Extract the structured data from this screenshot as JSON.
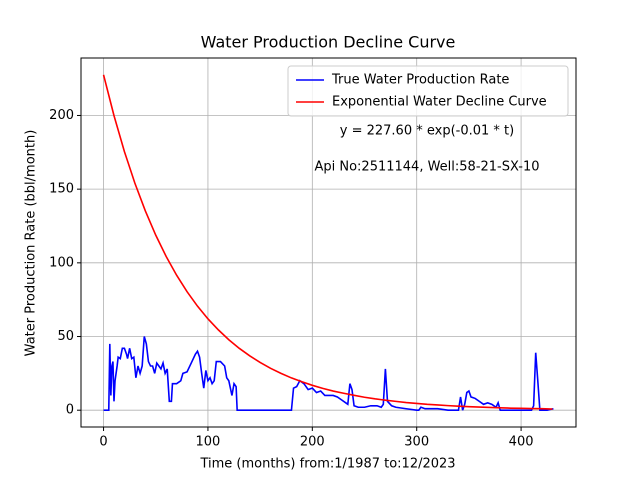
{
  "chart_data": {
    "type": "line",
    "title": "Water Production Decline Curve",
    "x_label": "Time (months) from:1/1987 to:12/2023",
    "y_label": "Water Production Rate (bbl/month)",
    "annotations": [
      "y = 227.60 * exp(-0.01 * t)",
      "Api No:2511144, Well:58-21-SX-10"
    ],
    "xlim": [
      -21.6,
      452.6
    ],
    "ylim": [
      -11.4,
      239.0
    ],
    "xticks": [
      0,
      100,
      200,
      300,
      400
    ],
    "yticks": [
      0,
      50,
      100,
      150,
      200
    ],
    "grid": true,
    "legend": "upper right",
    "series": [
      {
        "name": "True Water Production Rate",
        "color": "#0000ff",
        "x": [
          0,
          5,
          6,
          7,
          8,
          9,
          10,
          11,
          13,
          14,
          16,
          18,
          20,
          22,
          23,
          25,
          27,
          29,
          31,
          33,
          35,
          37,
          39,
          41,
          43,
          45,
          47,
          49,
          51,
          53,
          55,
          57,
          59,
          61,
          63,
          65,
          66,
          70,
          74,
          76,
          80,
          84,
          88,
          90,
          92,
          94,
          96,
          98,
          100,
          102,
          104,
          106,
          108,
          112,
          116,
          118,
          120,
          123,
          125,
          127,
          128,
          130,
          180,
          182,
          185,
          188,
          192,
          196,
          200,
          204,
          208,
          212,
          216,
          220,
          224,
          228,
          232,
          234,
          236,
          238,
          240,
          244,
          250,
          256,
          262,
          266,
          268,
          270,
          272,
          276,
          280,
          290,
          300,
          302,
          304,
          308,
          320,
          330,
          340,
          342,
          344,
          346,
          348,
          350,
          352,
          356,
          360,
          364,
          368,
          372,
          376,
          378,
          380,
          400,
          410,
          412,
          414,
          416,
          418,
          425,
          431
        ],
        "values": [
          0,
          0,
          45,
          10,
          30,
          33,
          6,
          20,
          30,
          36,
          35,
          42,
          42,
          38,
          35,
          42,
          35,
          36,
          22,
          30,
          25,
          30,
          50,
          45,
          33,
          30,
          30,
          25,
          32,
          30,
          28,
          32,
          25,
          28,
          6,
          6,
          18,
          18,
          20,
          25,
          26,
          32,
          38,
          40,
          36,
          25,
          15,
          27,
          20,
          22,
          18,
          20,
          33,
          33,
          30,
          22,
          20,
          10,
          18,
          16,
          0,
          0,
          0,
          15,
          16,
          20,
          18,
          14,
          15,
          12,
          13,
          10,
          10,
          10,
          9,
          7,
          5,
          4,
          18,
          14,
          3,
          2,
          2,
          3,
          3,
          2,
          4,
          28,
          6,
          3,
          2,
          1,
          0,
          0,
          2,
          1,
          1,
          0,
          0,
          9,
          0,
          4,
          12,
          13,
          9,
          8,
          6,
          4,
          5,
          4,
          2,
          5,
          0,
          0,
          0,
          3,
          39,
          20,
          0,
          0,
          1
        ]
      },
      {
        "name": "Exponential Water Decline Curve",
        "color": "#ff0000",
        "x": [
          0,
          10,
          20,
          30,
          40,
          50,
          60,
          70,
          80,
          90,
          100,
          110,
          120,
          130,
          140,
          150,
          160,
          170,
          180,
          190,
          200,
          210,
          220,
          230,
          240,
          250,
          260,
          270,
          280,
          290,
          300,
          310,
          320,
          330,
          340,
          350,
          360,
          370,
          380,
          390,
          400,
          410,
          420,
          430
        ],
        "values": [
          227.6,
          199.9,
          175.5,
          154.1,
          135.3,
          118.8,
          104.3,
          91.6,
          80.4,
          70.6,
          62.0,
          54.5,
          47.8,
          42.0,
          36.9,
          32.4,
          28.4,
          25.0,
          21.9,
          19.3,
          16.9,
          14.8,
          13.0,
          11.5,
          10.1,
          8.8,
          7.7,
          6.8,
          6.0,
          5.2,
          4.6,
          4.0,
          3.6,
          3.1,
          2.7,
          2.4,
          2.1,
          1.9,
          1.6,
          1.4,
          1.3,
          1.1,
          1.0,
          0.8
        ]
      }
    ]
  }
}
